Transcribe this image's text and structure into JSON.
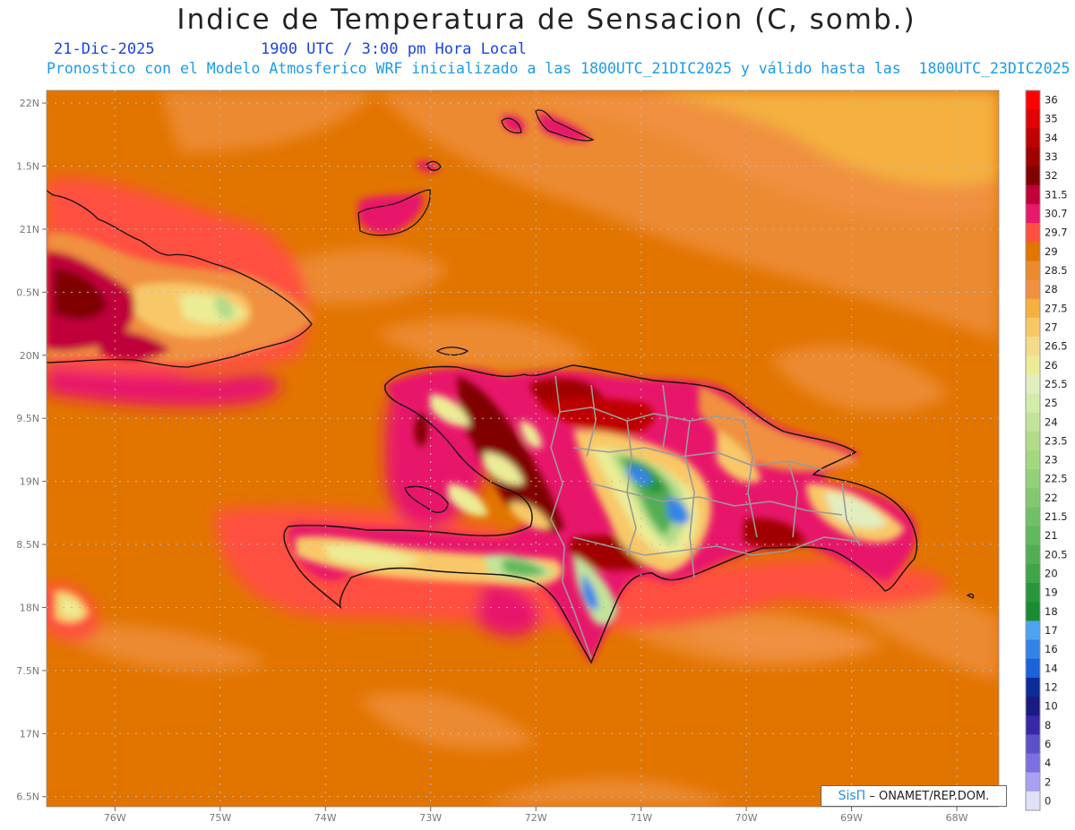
{
  "header": {
    "title": "Indice de Temperatura de Sensacion (C, somb.)",
    "date": "21-Dic-2025",
    "time": "1900 UTC / 3:00 pm Hora Local",
    "description": "Pronostico con el Modelo Atmosferico WRF inicializado a las 1800UTC_21DIC2025 y válido hasta las  1800UTC_23DIC2025"
  },
  "axes": {
    "lat_labels": [
      "22N",
      "1.5N",
      "21N",
      "0.5N",
      "20N",
      "9.5N",
      "19N",
      "8.5N",
      "18N",
      "7.5N",
      "17N",
      "6.5N"
    ],
    "lat_values": [
      22,
      21.5,
      21,
      20.5,
      20,
      19.5,
      19,
      18.5,
      18,
      17.5,
      17,
      16.5
    ],
    "lon_labels": [
      "76W",
      "75W",
      "74W",
      "73W",
      "72W",
      "71W",
      "70W",
      "69W",
      "68W"
    ],
    "lon_values": [
      -76,
      -75,
      -74,
      -73,
      -72,
      -71,
      -70,
      -69,
      -68
    ],
    "lat_range": [
      16.42,
      22.1
    ],
    "lon_range": [
      -76.65,
      -67.6
    ]
  },
  "colorbar": {
    "labels": [
      "36",
      "35",
      "34",
      "33",
      "32",
      "31.5",
      "30.7",
      "29.7",
      "29",
      "28.5",
      "28",
      "27.5",
      "27",
      "26.5",
      "26",
      "25.5",
      "25",
      "24",
      "23.5",
      "23",
      "22.5",
      "22",
      "21.5",
      "21",
      "20.5",
      "20",
      "19",
      "18",
      "17",
      "16",
      "14",
      "12",
      "10",
      "8",
      "6",
      "4",
      "2",
      "0"
    ],
    "colors": [
      "#ff0000",
      "#e00000",
      "#c00000",
      "#a00000",
      "#800000",
      "#c0003a",
      "#e8186a",
      "#ff5040",
      "#e27400",
      "#ec8a30",
      "#f09040",
      "#f5b040",
      "#f8c868",
      "#f2dc8a",
      "#ecec96",
      "#e2eec0",
      "#d2ecaa",
      "#c2e49a",
      "#b2dc8a",
      "#a4d880",
      "#92d07a",
      "#82c870",
      "#72c066",
      "#62b85c",
      "#52ae52",
      "#40a448",
      "#28963c",
      "#188c30",
      "#4aa4f0",
      "#3484e8",
      "#1c62d8",
      "#0c2c98",
      "#1a1a80",
      "#3828a8",
      "#5c50c8",
      "#7c70e0",
      "#a8a0f0",
      "#e0e0f8"
    ]
  },
  "legend_credit": {
    "logo": "SisΠ",
    "text": "– ONAMET/REP.DOM."
  }
}
